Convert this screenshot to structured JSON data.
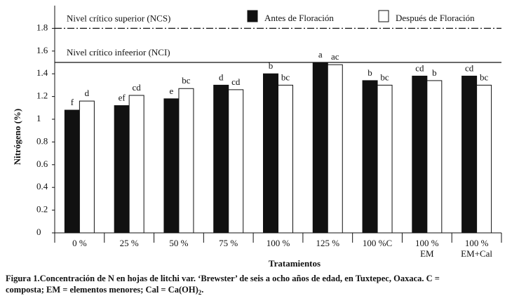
{
  "chart_data": {
    "type": "bar",
    "y_label": "Nitrógeno (%)",
    "x_label": "Tratamientos",
    "categories": [
      [
        "0 %"
      ],
      [
        "25 %"
      ],
      [
        "50 %"
      ],
      [
        "75 %"
      ],
      [
        "100 %"
      ],
      [
        "125 %"
      ],
      [
        "100 %C"
      ],
      [
        "100 %",
        "EM"
      ],
      [
        "100 %",
        "EM+Cal"
      ]
    ],
    "series": [
      {
        "name": "Antes de Floración",
        "color": "#111111",
        "values": [
          1.08,
          1.12,
          1.18,
          1.3,
          1.4,
          1.5,
          1.34,
          1.38,
          1.38
        ],
        "value_labels": [
          "f",
          "ef",
          "e",
          "d",
          "b",
          "a",
          "b",
          "cd",
          "cd"
        ]
      },
      {
        "name": "Después de Floración",
        "color": "#ffffff",
        "values": [
          1.16,
          1.21,
          1.27,
          1.26,
          1.3,
          1.48,
          1.3,
          1.34,
          1.3
        ],
        "value_labels": [
          "d",
          "cd",
          "bc",
          "cd",
          "bc",
          "ac",
          "bc",
          "b",
          "bc"
        ]
      }
    ],
    "ylim": [
      0,
      2
    ],
    "yticks": [
      0,
      0.2,
      0.4,
      0.6,
      0.8,
      1,
      1.2,
      1.4,
      1.6,
      1.8
    ],
    "reference_lines": [
      {
        "label": "Nivel crítico  superior (NCS)",
        "value": 1.8,
        "style": "dashdot"
      },
      {
        "label": "Nivel crítico  infeerior (NCI)",
        "value": 1.5,
        "style": "solid"
      }
    ],
    "caption": [
      "Figura 1.Concentración de N en hojas de litchi var. ‘Brewster’ de seis a ocho años de edad, en Tuxtepec, Oaxaca. C =",
      "composta; EM = elementos menores; Cal = Ca(OH)"
    ],
    "caption_subscript": "2",
    "caption_end": "."
  }
}
